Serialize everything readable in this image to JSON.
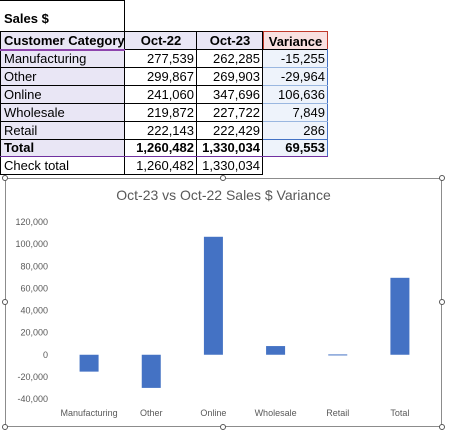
{
  "table": {
    "title": "Sales $",
    "headers": [
      "Customer Category",
      "Oct-22",
      "Oct-23",
      "Variance"
    ],
    "rows": [
      [
        "Manufacturing",
        "277,539",
        "262,285",
        "-15,255"
      ],
      [
        "Other",
        "299,867",
        "269,903",
        "-29,964"
      ],
      [
        "Online",
        "241,060",
        "347,696",
        "106,636"
      ],
      [
        "Wholesale",
        "219,872",
        "227,722",
        "7,849"
      ],
      [
        "Retail",
        "222,143",
        "222,429",
        "286"
      ]
    ],
    "total": [
      "Total",
      "1,260,482",
      "1,330,034",
      "69,553"
    ],
    "check": [
      "Check total",
      "1,260,482",
      "1,330,034"
    ]
  },
  "colors": {
    "bar": "#4472c4",
    "header_fill": "#e9e6f5",
    "variance_header_fill": "#f9e1e1",
    "variance_border": "#c0392b"
  },
  "chart_data": {
    "type": "bar",
    "title": "Oct-23 vs Oct-22 Sales $ Variance",
    "categories": [
      "Manufacturing",
      "Other",
      "Online",
      "Wholesale",
      "Retail",
      "Total"
    ],
    "values": [
      -15255,
      -29964,
      106636,
      7849,
      286,
      69553
    ],
    "ylim": [
      -40000,
      120000
    ],
    "yticks": [
      "120,000",
      "100,000",
      "80,000",
      "60,000",
      "40,000",
      "20,000",
      "0",
      "-20,000",
      "-40,000"
    ],
    "ytick_values": [
      120000,
      100000,
      80000,
      60000,
      40000,
      20000,
      0,
      -20000,
      -40000
    ],
    "grid": false,
    "legend": "none"
  }
}
